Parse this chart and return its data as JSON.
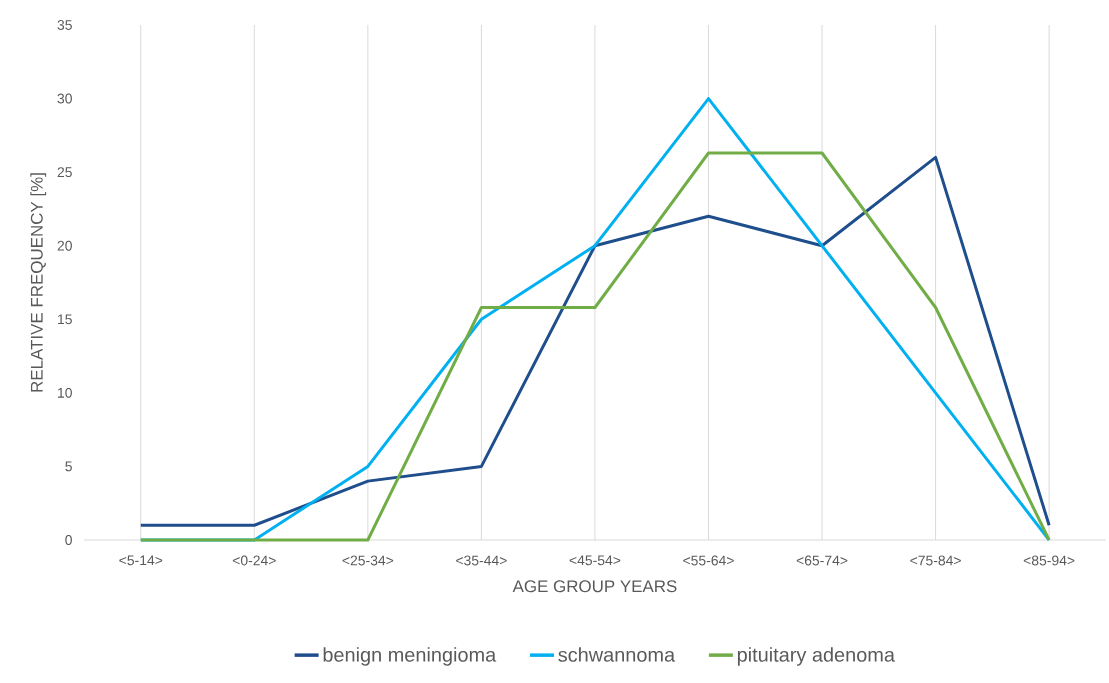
{
  "chart_data": {
    "type": "line",
    "xlabel": "AGE GROUP YEARS",
    "ylabel": "RELATIVE FREQUENCY [%]",
    "categories": [
      "<5-14>",
      "<0-24>",
      "<25-34>",
      "<35-44>",
      "<45-54>",
      "<55-64>",
      "<65-74>",
      "<75-84>",
      "<85-94>"
    ],
    "series": [
      {
        "name": "benign meningioma",
        "color": "#1f4e8c",
        "values": [
          1,
          1,
          4,
          5,
          20,
          22,
          20,
          26,
          1
        ]
      },
      {
        "name": "schwannoma",
        "color": "#00b0f0",
        "values": [
          0,
          0,
          5,
          15,
          20,
          30,
          20,
          10,
          0
        ]
      },
      {
        "name": "pituitary adenoma",
        "color": "#70ad47",
        "values": [
          0,
          0,
          0,
          15.8,
          15.8,
          26.3,
          26.3,
          15.8,
          0
        ]
      }
    ],
    "ylim": [
      0,
      35
    ],
    "yticks": [
      0,
      5,
      10,
      15,
      20,
      25,
      30,
      35
    ],
    "grid": "x",
    "legend": "bottom",
    "marker": "none",
    "line_style": "solid"
  }
}
